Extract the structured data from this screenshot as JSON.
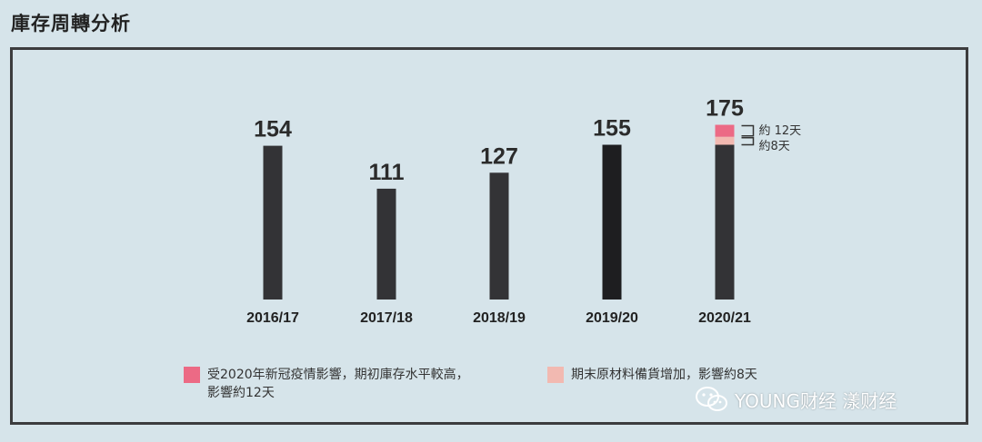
{
  "page": {
    "title": "庫存周轉分析"
  },
  "colors": {
    "background": "#d6e4ea",
    "frame": "#3c3c3e",
    "bar": "#333336",
    "bar_highlight": "#1e1e20",
    "covid": "#ec6a85",
    "material": "#f2b9b1"
  },
  "chart_data": {
    "type": "bar",
    "categories": [
      "2016/17",
      "2017/18",
      "2018/19",
      "2019/20",
      "2020/21"
    ],
    "values": [
      154,
      111,
      127,
      155,
      175
    ],
    "stack_2020_21": {
      "base": 155,
      "material": 8,
      "covid": 12
    },
    "annotations": [
      "約 12天",
      "約8天"
    ],
    "legend": [
      {
        "key": "covid",
        "label": "受2020年新冠疫情影響，期初庫存水平較高，\n影響約12天"
      },
      {
        "key": "material",
        "label": "期末原材料備貨增加，影響約8天"
      }
    ],
    "ylim": [
      0,
      200
    ]
  },
  "watermark": {
    "text": "YOUNG财经 漾财经",
    "icon": "wechat-icon"
  }
}
